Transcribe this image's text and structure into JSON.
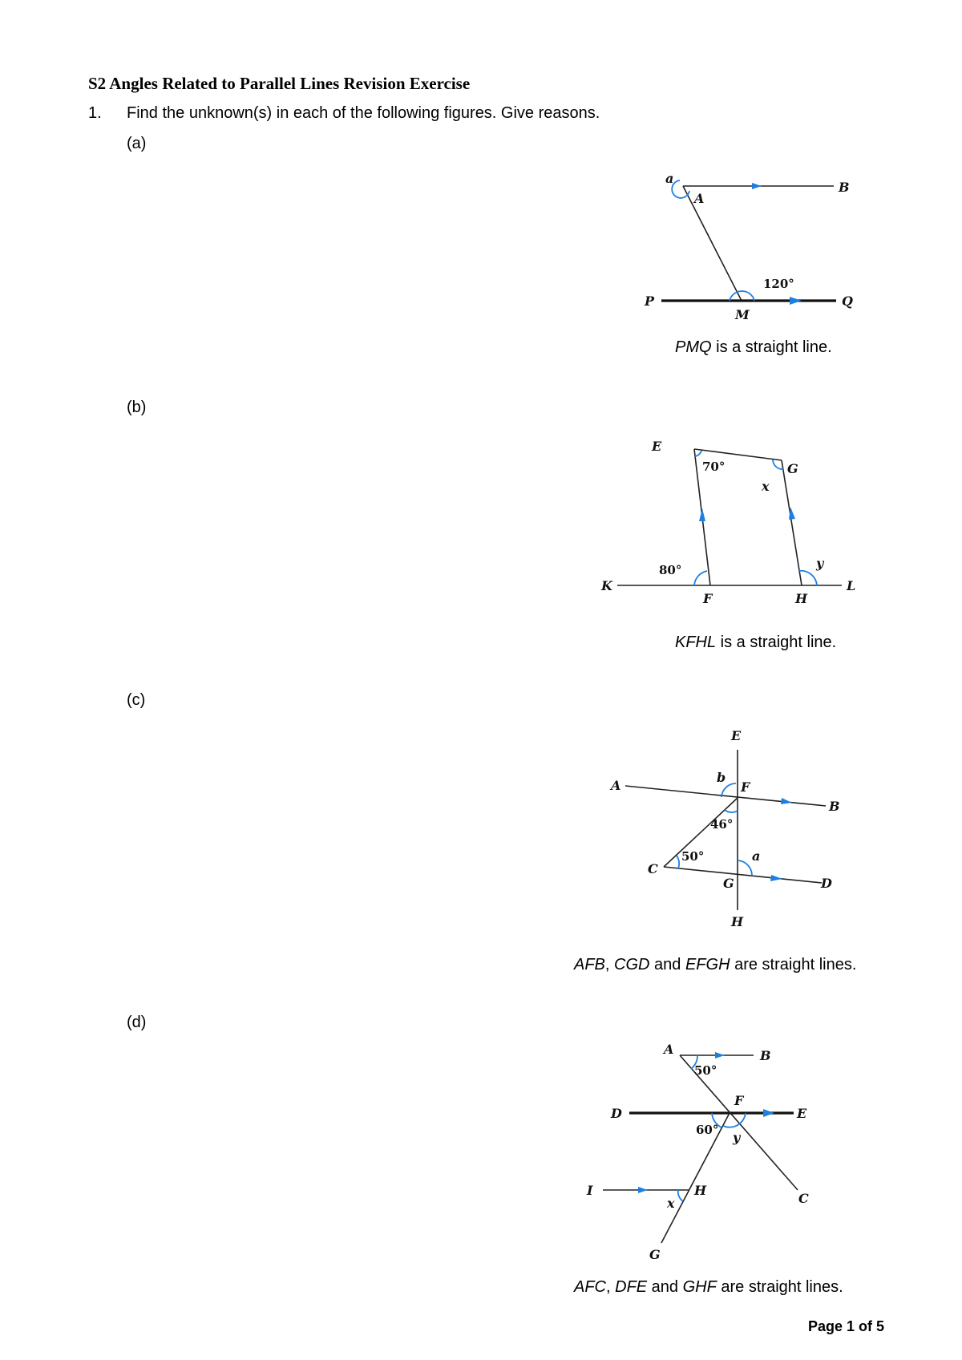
{
  "title": "S2 Angles Related to Parallel Lines Revision Exercise",
  "question": {
    "number": "1.",
    "text": "Find the unknown(s) in each of the following figures. Give reasons."
  },
  "parts": {
    "a": {
      "label": "(a)",
      "caption_vars": "PMQ",
      "caption_rest": " is a straight line.",
      "figure": {
        "p_a": "a",
        "p_A": "A",
        "p_B": "B",
        "p_P": "P",
        "p_M": "M",
        "p_Q": "Q",
        "angle": "120°"
      }
    },
    "b": {
      "label": "(b)",
      "caption_vars": "KFHL",
      "caption_rest": " is a straight line.",
      "figure": {
        "p_E": "E",
        "p_G": "G",
        "p_K": "K",
        "p_F": "F",
        "p_H": "H",
        "p_L": "L",
        "x": "x",
        "y": "y",
        "angle_E": "70°",
        "angle_F": "80°"
      }
    },
    "c": {
      "label": "(c)",
      "caption_v1": "AFB",
      "caption_s1": ", ",
      "caption_v2": "CGD",
      "caption_s2": " and ",
      "caption_v3": "EFGH",
      "caption_rest": " are straight lines.",
      "figure": {
        "p_E": "E",
        "p_A": "A",
        "p_F": "F",
        "p_B": "B",
        "p_C": "C",
        "p_G": "G",
        "p_D": "D",
        "p_H": "H",
        "a": "a",
        "b": "b",
        "angle_F": "46°",
        "angle_C": "50°"
      }
    },
    "d": {
      "label": "(d)",
      "caption_v1": "AFC",
      "caption_s1": ", ",
      "caption_v2": "DFE",
      "caption_s2": " and ",
      "caption_v3": "GHF",
      "caption_rest": " are straight lines.",
      "figure": {
        "p_A": "A",
        "p_B": "B",
        "p_D": "D",
        "p_F": "F",
        "p_E": "E",
        "p_I": "I",
        "p_H": "H",
        "p_C": "C",
        "p_G": "G",
        "x": "x",
        "y": "y",
        "angle_A": "50°",
        "angle_F": "60°"
      }
    }
  },
  "footer": "Page 1 of 5"
}
